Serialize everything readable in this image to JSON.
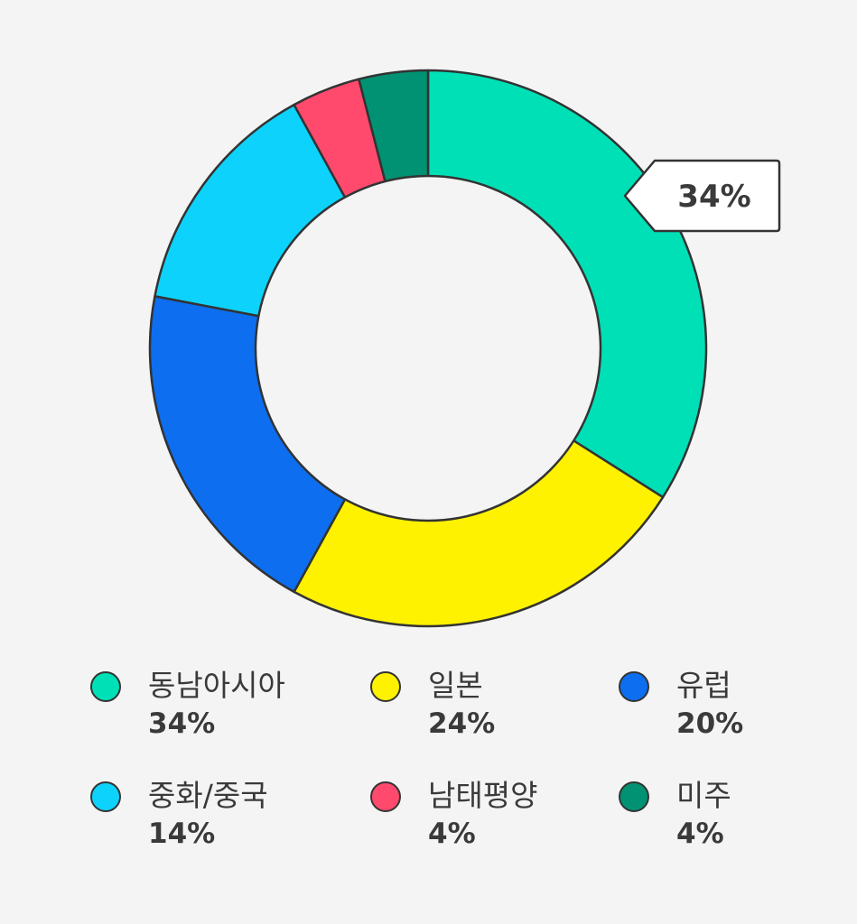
{
  "chart_data": {
    "type": "pie",
    "variant": "donut",
    "title": "",
    "slices": [
      {
        "label": "동남아시아",
        "value": 34,
        "value_label": "34%",
        "color": "#00e0b6"
      },
      {
        "label": "일본",
        "value": 24,
        "value_label": "24%",
        "color": "#fff200"
      },
      {
        "label": "유럽",
        "value": 20,
        "value_label": "20%",
        "color": "#0d6ef0"
      },
      {
        "label": "중화/중국",
        "value": 14,
        "value_label": "14%",
        "color": "#0dd3fc"
      },
      {
        "label": "남태평양",
        "value": 4,
        "value_label": "4%",
        "color": "#ff4a6e"
      },
      {
        "label": "미주",
        "value": 4,
        "value_label": "4%",
        "color": "#009272"
      }
    ],
    "highlight": {
      "label": "동남아시아",
      "text": "34%"
    },
    "legend_placement": "bottom"
  },
  "colors": {
    "background": "#f4f4f4",
    "stroke": "#333333",
    "text": "#3a3a3a"
  }
}
